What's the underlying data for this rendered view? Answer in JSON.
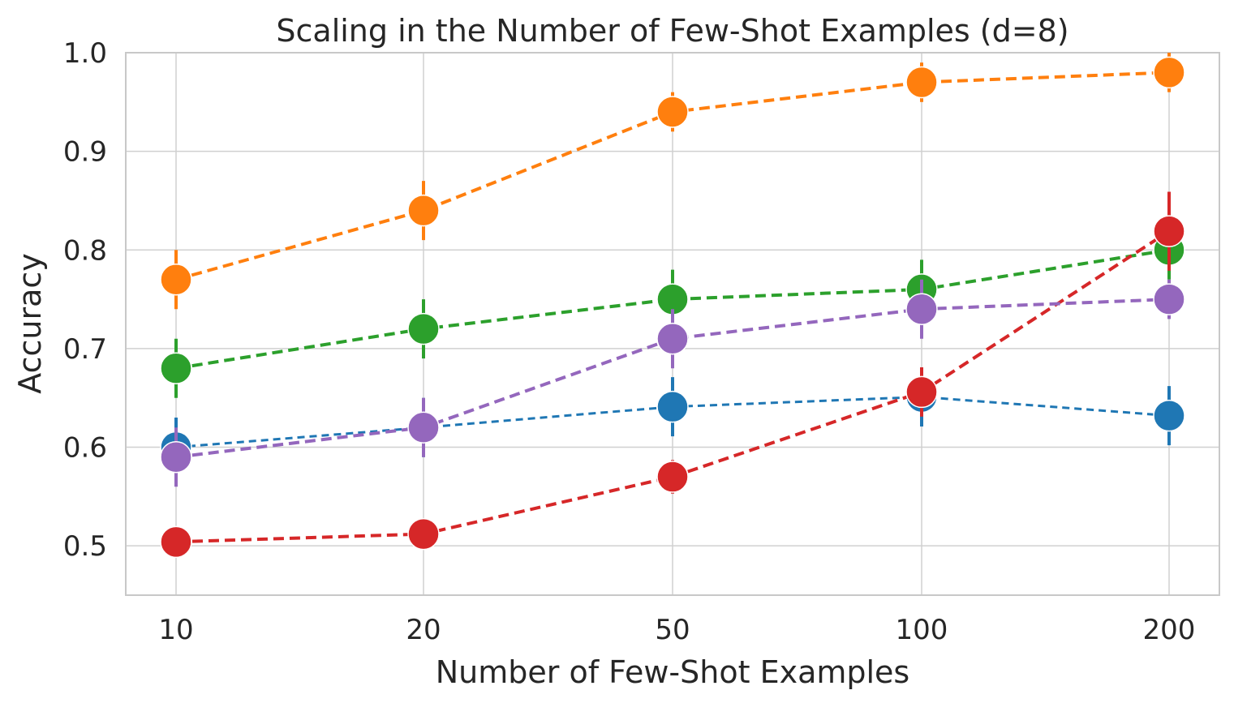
{
  "chart_data": {
    "type": "line",
    "title": "Scaling in the Number of Few-Shot Examples (d=8)",
    "xlabel": "Number of Few-Shot Examples",
    "ylabel": "Accuracy",
    "categories": [
      "10",
      "20",
      "50",
      "100",
      "200"
    ],
    "ylim": [
      0.45,
      1.0
    ],
    "yticks": [
      "0.5",
      "0.6",
      "0.7",
      "0.8",
      "0.9",
      "1.0"
    ],
    "grid": true,
    "legend": false,
    "series": [
      {
        "color": "#1f77b4",
        "values": [
          0.6,
          0.62,
          0.641,
          0.651,
          0.632
        ],
        "err": [
          0.03,
          0.03,
          0.03,
          0.03,
          0.03
        ]
      },
      {
        "color": "#ff7f0e",
        "values": [
          0.77,
          0.84,
          0.94,
          0.97,
          0.98
        ],
        "err": [
          0.03,
          0.03,
          0.02,
          0.02,
          0.02
        ]
      },
      {
        "color": "#2ca02c",
        "values": [
          0.68,
          0.72,
          0.75,
          0.76,
          0.8
        ],
        "err": [
          0.03,
          0.03,
          0.03,
          0.03,
          0.03
        ]
      },
      {
        "color": "#d62728",
        "values": [
          0.504,
          0.512,
          0.57,
          0.656,
          0.819
        ],
        "err": [
          0.0,
          0.0,
          0.017,
          0.025,
          0.04
        ]
      },
      {
        "color": "#9467bd",
        "values": [
          0.59,
          0.62,
          0.71,
          0.74,
          0.75
        ],
        "err": [
          0.03,
          0.03,
          0.03,
          0.03,
          0.02
        ]
      }
    ]
  }
}
